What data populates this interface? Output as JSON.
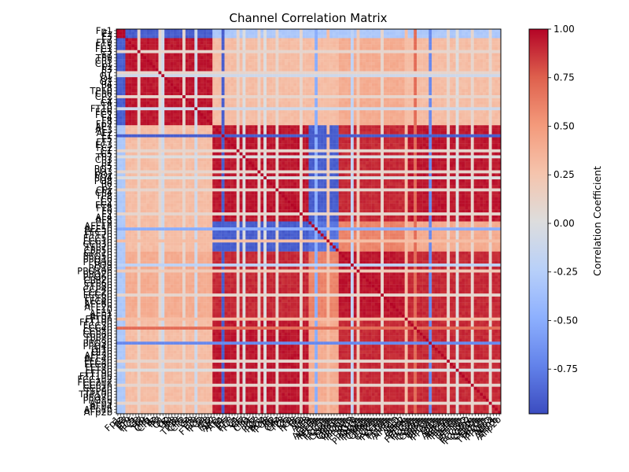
{
  "chart_data": {
    "type": "heatmap",
    "title": "Channel Correlation Matrix",
    "colorbar": {
      "label": "Correlation Coefficient",
      "range": [
        -0.98,
        1.0
      ],
      "ticks": [
        "1.00",
        "0.75",
        "0.50",
        "0.25",
        "0.00",
        "-0.25",
        "-0.50",
        "-0.75"
      ],
      "tick_values": [
        1.0,
        0.75,
        0.5,
        0.25,
        0.0,
        -0.25,
        -0.5,
        -0.75
      ],
      "colormap": "coolwarm"
    },
    "channels": [
      "Fp1",
      "Fz",
      "F3",
      "F7",
      "FT9",
      "FC5",
      "FC1",
      "C3",
      "T7",
      "TP9",
      "CP5",
      "CP1",
      "Pz",
      "P3",
      "P7",
      "O1",
      "Oz",
      "O2",
      "P4",
      "P8",
      "TP10",
      "CP6",
      "CP2",
      "Cz",
      "C4",
      "T8",
      "FT10",
      "FC6",
      "FC2",
      "F4",
      "F8",
      "Fp2",
      "AF7",
      "AF3",
      "AFz",
      "F1",
      "F5",
      "FT7",
      "FC3",
      "FCz",
      "C1",
      "C5",
      "TP7",
      "CP3",
      "P1",
      "P5",
      "PO7",
      "PO3",
      "POz",
      "PO4",
      "PO8",
      "P6",
      "P2",
      "CPz",
      "CP4",
      "TP8",
      "C6",
      "C2",
      "FC4",
      "FT8",
      "F6",
      "F2",
      "AF4",
      "AF8",
      "F9",
      "AFF1h",
      "AFF5h",
      "FFC3h",
      "FTT7h",
      "FCC5h",
      "FCC1h",
      "CCP3h",
      "TTP7h",
      "CPP5h",
      "CPP1h",
      "PPO5h",
      "PPO1h",
      "PPO9h",
      "PO9",
      "PO10",
      "PPO10h",
      "PPO2h",
      "PPO6h",
      "CPP2h",
      "CPP6h",
      "TTP8h",
      "CCP4h",
      "FCC2h",
      "FCC6h",
      "FTT8h",
      "FFC4h",
      "AFF6h",
      "AFF2h",
      "F10",
      "AFp1",
      "AFp2",
      "FFT9h",
      "FFT10h",
      "FCC3h",
      "FCC4h",
      "CCP5h",
      "CCP6h",
      "TPP7h",
      "TPP8h",
      "PPO3h",
      "PPO4h",
      "OI1h",
      "OI2h",
      "AFF3h",
      "AFF4h",
      "FFC5h",
      "FFC6h",
      "FFT7h",
      "FFT8h",
      "FTT9h",
      "FTT10h",
      "FCC1h2",
      "FCC2h2",
      "CCP1h",
      "CCP2h",
      "TTP9h",
      "TTP10h",
      "PPO7h",
      "PPO8h",
      "AFp3",
      "AFp4",
      "AFp1b",
      "AFp2b"
    ],
    "groups": [
      {
        "start": 0,
        "end": 3,
        "self": 1.0
      },
      {
        "start": 3,
        "end": 32,
        "self": 0.95
      },
      {
        "start": 32,
        "end": 64,
        "self": 0.95
      },
      {
        "start": 64,
        "end": 74,
        "self": -0.8
      },
      {
        "start": 74,
        "end": 96,
        "self": 0.95
      },
      {
        "start": 96,
        "end": 128,
        "self": 0.9
      }
    ],
    "group_correlations": [
      [
        1.0,
        -0.9,
        -0.3,
        -0.3,
        -0.3,
        -0.3
      ],
      [
        -0.9,
        0.95,
        0.3,
        0.3,
        0.4,
        0.3
      ],
      [
        -0.3,
        0.3,
        0.95,
        -0.9,
        0.9,
        0.95
      ],
      [
        -0.3,
        0.3,
        -0.9,
        -0.8,
        0.6,
        0.4
      ],
      [
        -0.3,
        0.4,
        0.9,
        0.6,
        0.95,
        0.9
      ],
      [
        -0.3,
        0.3,
        0.95,
        0.4,
        0.9,
        0.9
      ]
    ],
    "special_channels": [
      {
        "index": 7,
        "value": 0.1
      },
      {
        "index": 14,
        "value": 0.1
      },
      {
        "index": 15,
        "value": -0.1
      },
      {
        "index": 22,
        "value": 0.1
      },
      {
        "index": 26,
        "value": -0.1
      },
      {
        "index": 35,
        "value": -0.9
      },
      {
        "index": 40,
        "value": 0.1
      },
      {
        "index": 42,
        "value": 0.0
      },
      {
        "index": 47,
        "value": 0.1
      },
      {
        "index": 49,
        "value": 0.0
      },
      {
        "index": 53,
        "value": 0.1
      },
      {
        "index": 61,
        "value": 0.1
      },
      {
        "index": 66,
        "value": -0.5
      },
      {
        "index": 70,
        "value": 0.3
      },
      {
        "index": 78,
        "value": -0.2
      },
      {
        "index": 80,
        "value": 0.2
      },
      {
        "index": 88,
        "value": 0.1
      },
      {
        "index": 96,
        "value": 0.3
      },
      {
        "index": 99,
        "value": 0.7
      },
      {
        "index": 104,
        "value": -0.7
      },
      {
        "index": 110,
        "value": 0.1
      },
      {
        "index": 113,
        "value": 0.0
      },
      {
        "index": 118,
        "value": 0.1
      },
      {
        "index": 124,
        "value": 0.1
      }
    ]
  }
}
